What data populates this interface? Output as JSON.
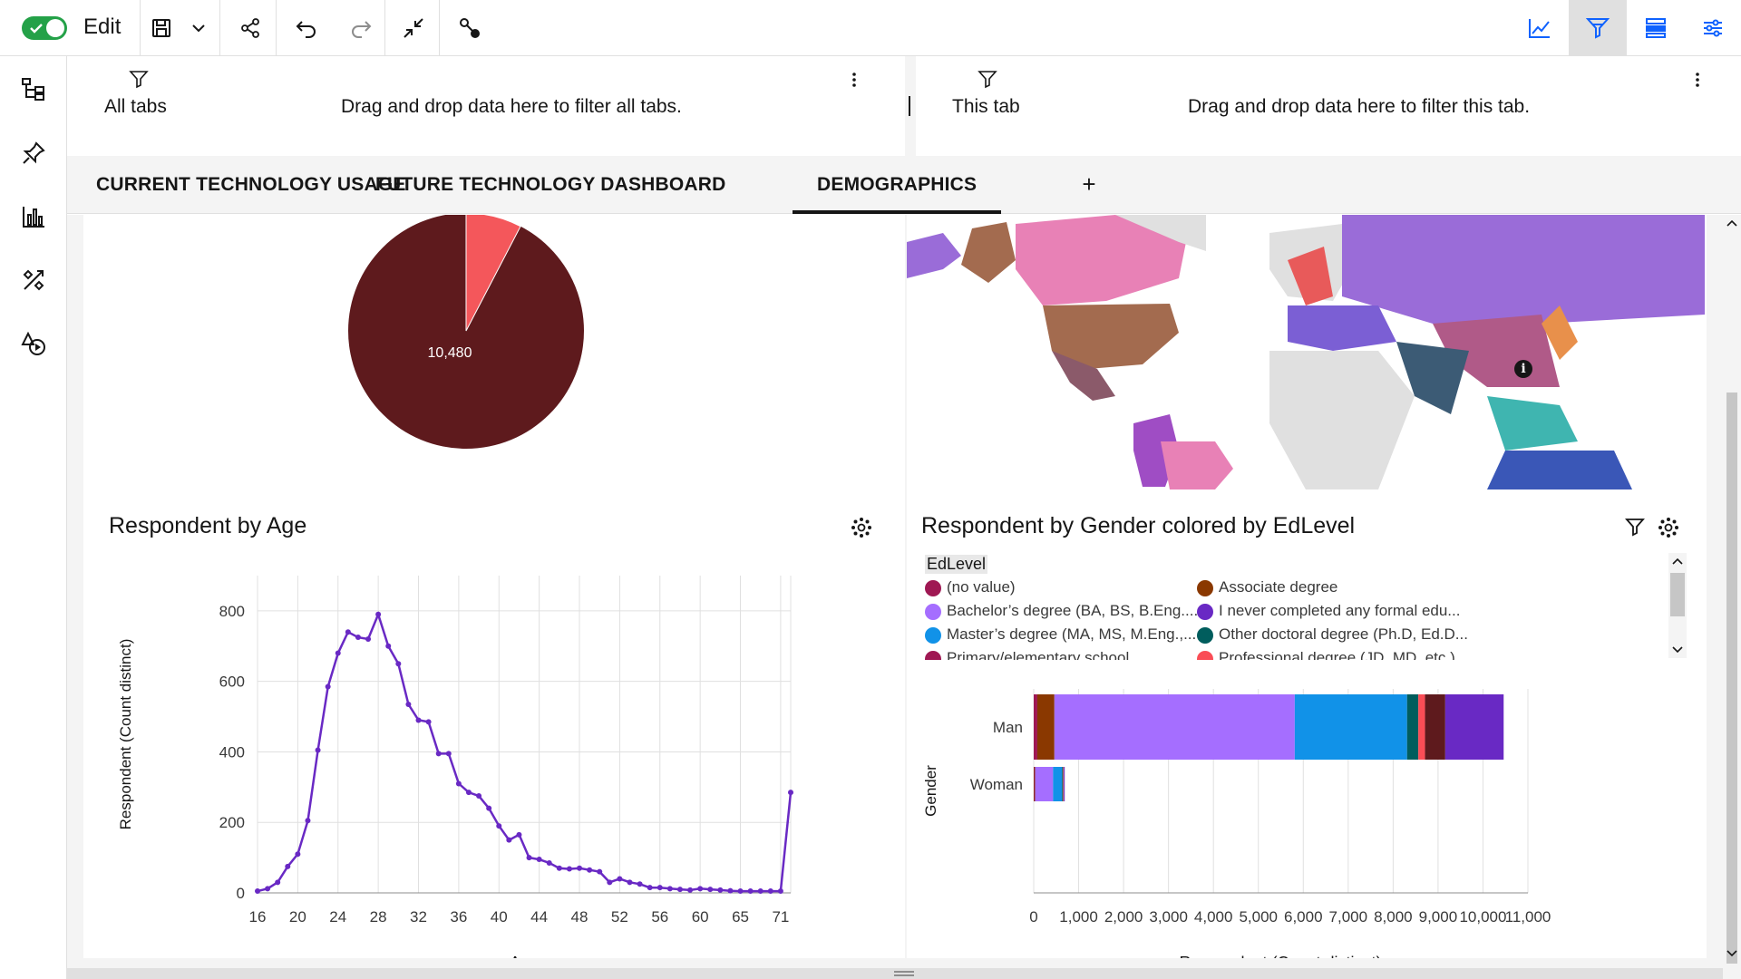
{
  "toolbar": {
    "edit_label": "Edit",
    "toggle_on": true
  },
  "icons": {
    "toggle": "check-icon",
    "save": "save-icon",
    "chevron": "chevron-down-icon",
    "share": "share-icon",
    "undo": "undo-icon",
    "redo": "redo-icon",
    "collapse": "collapse-icon",
    "story": "story-icon",
    "visualizations": "line-chart-icon",
    "filters": "filter-icon",
    "data": "data-stack-icon",
    "properties": "settings-adjust-icon"
  },
  "filters": {
    "all_tabs": {
      "title": "All tabs",
      "hint": "Drag and drop data here to filter all tabs."
    },
    "this_tab": {
      "title": "This tab",
      "hint": "Drag and drop data here to filter this tab."
    }
  },
  "tabs": [
    {
      "label": "CURRENT TECHNOLOGY USAGE",
      "active": false
    },
    {
      "label": "FUTURE TECHNOLOGY DASHBOARD",
      "active": false
    },
    {
      "label": "DEMOGRAPHICS",
      "active": true
    }
  ],
  "tab_add_label": "+",
  "pie": {
    "label": "10,480",
    "colors": {
      "main": "#5e1a1d",
      "slice": "#f4575b"
    }
  },
  "age_chart": {
    "title": "Respondent by Age"
  },
  "gender_chart": {
    "title": "Respondent by Gender colored by EdLevel",
    "legend_title": "EdLevel",
    "legend": [
      {
        "label": "(no value)",
        "color": "#9f1853"
      },
      {
        "label": "Associate degree",
        "color": "#8a3800"
      },
      {
        "label": "Bachelor’s degree (BA, BS, B.Eng....",
        "color": "#a56eff"
      },
      {
        "label": "I never completed any formal edu...",
        "color": "#6929c4"
      },
      {
        "label": "Master’s degree (MA, MS, M.Eng.,...",
        "color": "#1192e8"
      },
      {
        "label": "Other doctoral degree (Ph.D, Ed.D...",
        "color": "#005d5d"
      },
      {
        "label": "Primary/elementary school",
        "color": "#9f1853"
      },
      {
        "label": "Professional degree (JD, MD, etc.)",
        "color": "#fa4d56"
      }
    ]
  },
  "chart_data": [
    {
      "type": "line",
      "title": "Respondent by Age",
      "xlabel": "Age",
      "ylabel": "Respondent (Count distinct)",
      "ylim": [
        0,
        900
      ],
      "y_ticks": [
        0,
        200,
        400,
        600,
        800
      ],
      "x_tick_labels": [
        "16",
        "20",
        "24",
        "28",
        "32",
        "36",
        "40",
        "44",
        "48",
        "52",
        "56",
        "60",
        "65",
        "71"
      ],
      "grid": true,
      "color": "#6929c4",
      "values": [
        5,
        12,
        30,
        75,
        110,
        205,
        405,
        585,
        680,
        740,
        725,
        720,
        790,
        700,
        650,
        535,
        490,
        485,
        395,
        395,
        310,
        285,
        275,
        240,
        190,
        150,
        165,
        100,
        95,
        85,
        70,
        68,
        70,
        65,
        60,
        30,
        40,
        30,
        25,
        15,
        15,
        12,
        10,
        8,
        12,
        10,
        8,
        6,
        5,
        5,
        5,
        5,
        5,
        285
      ]
    },
    {
      "type": "bar",
      "orientation": "horizontal",
      "stacked": true,
      "title": "Respondent by Gender colored by EdLevel",
      "xlabel": "Respondent (Count distinct)",
      "ylabel": "Gender",
      "xlim": [
        0,
        11000
      ],
      "x_ticks": [
        "0",
        "1,000",
        "2,000",
        "3,000",
        "4,000",
        "5,000",
        "6,000",
        "7,000",
        "8,000",
        "9,000",
        "10,000",
        "11,000"
      ],
      "categories": [
        "Man",
        "Woman"
      ],
      "series": [
        {
          "name": "(no value)",
          "color": "#9f1853",
          "values": [
            80,
            10
          ]
        },
        {
          "name": "Associate degree",
          "color": "#8a3800",
          "values": [
            380,
            20
          ]
        },
        {
          "name": "Bachelor’s degree (BA, BS, B.Eng....",
          "color": "#a56eff",
          "values": [
            5350,
            400
          ]
        },
        {
          "name": "Master’s degree (MA, MS, M.Eng.,...",
          "color": "#1192e8",
          "values": [
            2500,
            200
          ]
        },
        {
          "name": "Other doctoral degree (Ph.D, Ed.D...",
          "color": "#005d5d",
          "values": [
            250,
            20
          ]
        },
        {
          "name": "Professional degree (JD, MD, etc.)",
          "color": "#fa4d56",
          "values": [
            150,
            10
          ]
        },
        {
          "name": "Primary/elementary school",
          "color": "#5e1a1d",
          "values": [
            450,
            10
          ]
        },
        {
          "name": "I never completed any formal edu...",
          "color": "#6929c4",
          "values": [
            1300,
            20
          ]
        }
      ]
    }
  ]
}
